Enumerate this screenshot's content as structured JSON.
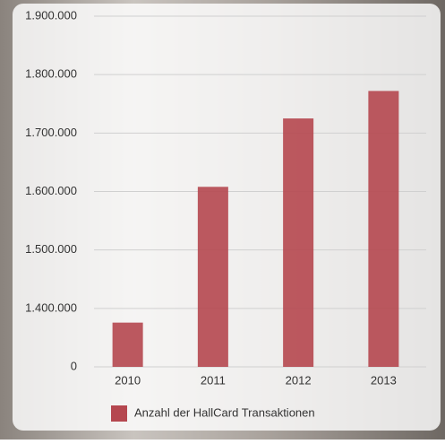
{
  "chart_data": {
    "type": "bar",
    "categories": [
      "2010",
      "2011",
      "2012",
      "2013"
    ],
    "series": [
      {
        "name": "Anzahl der HallCard Transaktionen",
        "color": "#b5474f",
        "values": [
          1060000,
          1608000,
          1725000,
          1772000
        ]
      }
    ],
    "ylim": [
      0,
      1900000
    ],
    "yticks": [
      0,
      {
        "value": 1400000,
        "label": "1.400.000"
      },
      {
        "value": 1500000,
        "label": "1.500.000"
      },
      {
        "value": 1600000,
        "label": "1.600.000"
      },
      {
        "value": 1700000,
        "label": "1.700.000"
      },
      {
        "value": 1800000,
        "label": "1.800.000"
      },
      {
        "value": 1900000,
        "label": "1.900.000"
      }
    ],
    "grid": true,
    "legend": "bottom"
  }
}
